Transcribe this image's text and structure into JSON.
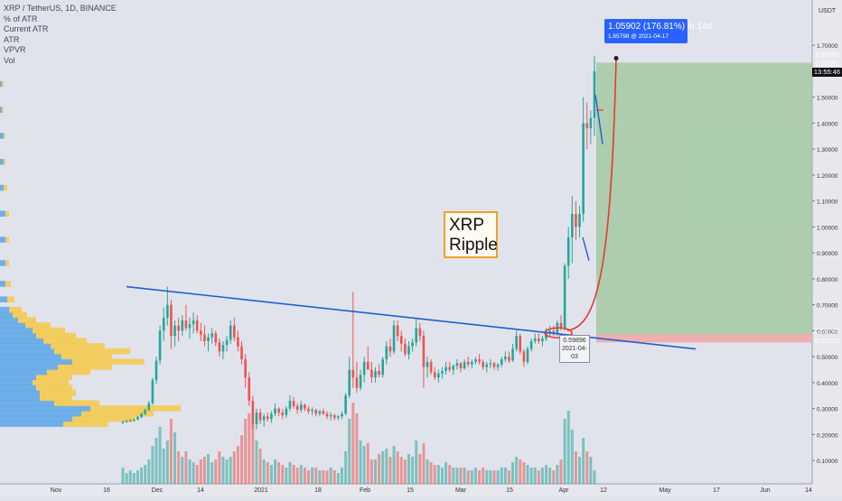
{
  "indicators": [
    "XRP / TetherUS, 1D, BINANCE",
    "% of ATR",
    "Current ATR",
    "ATR",
    "VPVR",
    "Vol"
  ],
  "annotation": {
    "line1": "XRP",
    "line2": "Ripple"
  },
  "measure": {
    "line1": "1.05902 (176.81%) in 14d",
    "line2": "1.65798 @ 2021-04-17"
  },
  "point_label": {
    "price": "0.59896",
    "date": "2021-04-03"
  },
  "price_tags": [
    {
      "text": "1.63265",
      "color": "#4a9a5c"
    },
    {
      "text": "1.60291",
      "color": "#111111"
    },
    {
      "text": "0.58745",
      "color": "#111111"
    },
    {
      "text": "0.55522",
      "color": "#ef5350"
    }
  ],
  "time_tag": "13:55:46",
  "colors": {
    "up": "#26a69a",
    "down": "#ef5350",
    "trend": "#1f5ed6",
    "target": "#a3c9a3",
    "stop": "#f0a8a8",
    "curve": "#e53935",
    "vpvr_blue": "#5aa6e8",
    "vpvr_yellow": "#f5c94a"
  },
  "chart_data": {
    "type": "candlestick",
    "title": "XRP / TetherUS, 1D, BINANCE",
    "y_axis": {
      "currency": "USDT",
      "ylim": [
        0.01,
        1.79
      ],
      "ticks": [
        1.7,
        1.6,
        1.5,
        1.4,
        1.3,
        1.2,
        1.1,
        1.0,
        0.9,
        0.8,
        0.7,
        0.6,
        0.5,
        0.4,
        0.3,
        0.2,
        0.1
      ],
      "tick_labels": [
        "1.70000",
        "1.60000",
        "1.50000",
        "1.40000",
        "1.30000",
        "1.20000",
        "1.10000",
        "1.00000",
        "0.90000",
        "0.80000",
        "0.70000",
        "0.60000",
        "0.50000",
        "0.40000",
        "0.30000",
        "0.20000",
        "0.10000"
      ]
    },
    "x_axis": {
      "ticks": [
        "Nov",
        "16",
        "Dec",
        "14",
        "2021",
        "18",
        "Feb",
        "15",
        "Mar",
        "15",
        "Apr",
        "12",
        "May",
        "17",
        "Jun",
        "14"
      ]
    },
    "price_ohlc": [
      [
        0.245,
        0.255,
        0.24,
        0.25
      ],
      [
        0.25,
        0.258,
        0.245,
        0.252
      ],
      [
        0.252,
        0.26,
        0.248,
        0.255
      ],
      [
        0.255,
        0.262,
        0.25,
        0.258
      ],
      [
        0.258,
        0.272,
        0.255,
        0.268
      ],
      [
        0.268,
        0.285,
        0.262,
        0.28
      ],
      [
        0.28,
        0.3,
        0.275,
        0.295
      ],
      [
        0.295,
        0.33,
        0.29,
        0.32
      ],
      [
        0.32,
        0.42,
        0.315,
        0.41
      ],
      [
        0.41,
        0.5,
        0.395,
        0.485
      ],
      [
        0.485,
        0.62,
        0.47,
        0.6
      ],
      [
        0.6,
        0.69,
        0.56,
        0.65
      ],
      [
        0.65,
        0.77,
        0.62,
        0.7
      ],
      [
        0.7,
        0.72,
        0.53,
        0.58
      ],
      [
        0.58,
        0.64,
        0.54,
        0.62
      ],
      [
        0.62,
        0.65,
        0.56,
        0.6
      ],
      [
        0.6,
        0.66,
        0.58,
        0.64
      ],
      [
        0.64,
        0.7,
        0.6,
        0.61
      ],
      [
        0.61,
        0.65,
        0.57,
        0.625
      ],
      [
        0.625,
        0.67,
        0.59,
        0.64
      ],
      [
        0.64,
        0.66,
        0.59,
        0.6
      ],
      [
        0.6,
        0.63,
        0.56,
        0.585
      ],
      [
        0.585,
        0.62,
        0.54,
        0.56
      ],
      [
        0.56,
        0.59,
        0.52,
        0.575
      ],
      [
        0.575,
        0.61,
        0.55,
        0.59
      ],
      [
        0.59,
        0.6,
        0.54,
        0.555
      ],
      [
        0.555,
        0.57,
        0.5,
        0.52
      ],
      [
        0.52,
        0.56,
        0.49,
        0.545
      ],
      [
        0.545,
        0.58,
        0.52,
        0.565
      ],
      [
        0.565,
        0.64,
        0.55,
        0.62
      ],
      [
        0.62,
        0.65,
        0.56,
        0.575
      ],
      [
        0.575,
        0.6,
        0.52,
        0.54
      ],
      [
        0.54,
        0.56,
        0.47,
        0.49
      ],
      [
        0.49,
        0.51,
        0.38,
        0.42
      ],
      [
        0.42,
        0.44,
        0.31,
        0.33
      ],
      [
        0.33,
        0.35,
        0.22,
        0.24
      ],
      [
        0.24,
        0.3,
        0.22,
        0.285
      ],
      [
        0.285,
        0.3,
        0.24,
        0.255
      ],
      [
        0.255,
        0.28,
        0.23,
        0.27
      ],
      [
        0.27,
        0.285,
        0.25,
        0.26
      ],
      [
        0.26,
        0.29,
        0.245,
        0.28
      ],
      [
        0.28,
        0.32,
        0.27,
        0.3
      ],
      [
        0.3,
        0.305,
        0.27,
        0.285
      ],
      [
        0.285,
        0.3,
        0.26,
        0.275
      ],
      [
        0.275,
        0.31,
        0.265,
        0.3
      ],
      [
        0.3,
        0.35,
        0.29,
        0.33
      ],
      [
        0.33,
        0.345,
        0.3,
        0.31
      ],
      [
        0.31,
        0.32,
        0.28,
        0.295
      ],
      [
        0.295,
        0.33,
        0.285,
        0.315
      ],
      [
        0.315,
        0.32,
        0.29,
        0.3
      ],
      [
        0.3,
        0.31,
        0.28,
        0.29
      ],
      [
        0.29,
        0.305,
        0.275,
        0.295
      ],
      [
        0.295,
        0.3,
        0.27,
        0.28
      ],
      [
        0.28,
        0.295,
        0.27,
        0.29
      ],
      [
        0.29,
        0.3,
        0.275,
        0.28
      ],
      [
        0.28,
        0.29,
        0.26,
        0.27
      ],
      [
        0.27,
        0.285,
        0.255,
        0.275
      ],
      [
        0.275,
        0.28,
        0.255,
        0.265
      ],
      [
        0.265,
        0.275,
        0.255,
        0.27
      ],
      [
        0.27,
        0.29,
        0.26,
        0.28
      ],
      [
        0.28,
        0.36,
        0.275,
        0.35
      ],
      [
        0.35,
        0.5,
        0.34,
        0.45
      ],
      [
        0.45,
        0.75,
        0.38,
        0.42
      ],
      [
        0.42,
        0.48,
        0.36,
        0.38
      ],
      [
        0.38,
        0.45,
        0.37,
        0.43
      ],
      [
        0.43,
        0.5,
        0.4,
        0.48
      ],
      [
        0.48,
        0.54,
        0.45,
        0.45
      ],
      [
        0.45,
        0.48,
        0.4,
        0.42
      ],
      [
        0.42,
        0.46,
        0.4,
        0.445
      ],
      [
        0.445,
        0.47,
        0.42,
        0.43
      ],
      [
        0.43,
        0.5,
        0.42,
        0.49
      ],
      [
        0.49,
        0.56,
        0.47,
        0.54
      ],
      [
        0.54,
        0.57,
        0.5,
        0.52
      ],
      [
        0.52,
        0.64,
        0.51,
        0.62
      ],
      [
        0.62,
        0.64,
        0.56,
        0.58
      ],
      [
        0.58,
        0.6,
        0.52,
        0.55
      ],
      [
        0.55,
        0.57,
        0.5,
        0.51
      ],
      [
        0.51,
        0.56,
        0.49,
        0.54
      ],
      [
        0.54,
        0.57,
        0.52,
        0.555
      ],
      [
        0.555,
        0.65,
        0.54,
        0.61
      ],
      [
        0.61,
        0.63,
        0.56,
        0.58
      ],
      [
        0.58,
        0.6,
        0.38,
        0.46
      ],
      [
        0.46,
        0.5,
        0.42,
        0.48
      ],
      [
        0.48,
        0.49,
        0.43,
        0.44
      ],
      [
        0.44,
        0.46,
        0.41,
        0.42
      ],
      [
        0.42,
        0.45,
        0.4,
        0.435
      ],
      [
        0.435,
        0.46,
        0.415,
        0.445
      ],
      [
        0.445,
        0.48,
        0.43,
        0.46
      ],
      [
        0.46,
        0.48,
        0.44,
        0.45
      ],
      [
        0.45,
        0.47,
        0.43,
        0.465
      ],
      [
        0.465,
        0.49,
        0.45,
        0.475
      ],
      [
        0.475,
        0.48,
        0.44,
        0.455
      ],
      [
        0.455,
        0.49,
        0.45,
        0.48
      ],
      [
        0.48,
        0.5,
        0.46,
        0.47
      ],
      [
        0.47,
        0.49,
        0.455,
        0.48
      ],
      [
        0.48,
        0.5,
        0.47,
        0.49
      ],
      [
        0.49,
        0.51,
        0.47,
        0.48
      ],
      [
        0.48,
        0.49,
        0.45,
        0.46
      ],
      [
        0.46,
        0.48,
        0.44,
        0.47
      ],
      [
        0.47,
        0.49,
        0.455,
        0.475
      ],
      [
        0.475,
        0.48,
        0.45,
        0.46
      ],
      [
        0.46,
        0.475,
        0.445,
        0.47
      ],
      [
        0.47,
        0.5,
        0.46,
        0.49
      ],
      [
        0.49,
        0.52,
        0.48,
        0.5
      ],
      [
        0.5,
        0.52,
        0.475,
        0.485
      ],
      [
        0.485,
        0.55,
        0.48,
        0.53
      ],
      [
        0.53,
        0.6,
        0.52,
        0.58
      ],
      [
        0.58,
        0.59,
        0.51,
        0.52
      ],
      [
        0.52,
        0.53,
        0.46,
        0.48
      ],
      [
        0.48,
        0.54,
        0.47,
        0.53
      ],
      [
        0.53,
        0.57,
        0.52,
        0.56
      ],
      [
        0.56,
        0.59,
        0.55,
        0.57
      ],
      [
        0.57,
        0.59,
        0.55,
        0.56
      ],
      [
        0.56,
        0.58,
        0.54,
        0.57
      ],
      [
        0.57,
        0.61,
        0.56,
        0.59
      ],
      [
        0.59,
        0.62,
        0.58,
        0.6
      ],
      [
        0.6,
        0.62,
        0.58,
        0.59
      ],
      [
        0.59,
        0.64,
        0.58,
        0.63
      ],
      [
        0.63,
        0.66,
        0.6,
        0.61
      ],
      [
        0.61,
        0.86,
        0.6,
        0.85
      ],
      [
        0.85,
        1.0,
        0.8,
        0.96
      ],
      [
        0.96,
        1.12,
        0.86,
        1.05
      ],
      [
        1.05,
        1.1,
        0.95,
        1.0
      ],
      [
        1.0,
        1.08,
        0.96,
        1.05
      ],
      [
        1.05,
        1.5,
        1.02,
        1.4
      ],
      [
        1.4,
        1.48,
        1.3,
        1.38
      ],
      [
        1.38,
        1.45,
        1.32,
        1.42
      ],
      [
        1.42,
        1.66,
        1.35,
        1.6
      ]
    ],
    "volume": [
      0.06,
      0.04,
      0.05,
      0.04,
      0.05,
      0.06,
      0.07,
      0.09,
      0.14,
      0.17,
      0.21,
      0.13,
      0.16,
      0.24,
      0.19,
      0.12,
      0.1,
      0.12,
      0.09,
      0.08,
      0.07,
      0.09,
      0.1,
      0.11,
      0.08,
      0.09,
      0.12,
      0.1,
      0.09,
      0.1,
      0.12,
      0.14,
      0.18,
      0.24,
      0.26,
      0.22,
      0.16,
      0.13,
      0.09,
      0.08,
      0.07,
      0.09,
      0.08,
      0.07,
      0.06,
      0.08,
      0.07,
      0.06,
      0.07,
      0.06,
      0.05,
      0.06,
      0.06,
      0.05,
      0.05,
      0.05,
      0.06,
      0.05,
      0.04,
      0.06,
      0.12,
      0.24,
      0.3,
      0.26,
      0.16,
      0.14,
      0.15,
      0.09,
      0.09,
      0.11,
      0.12,
      0.13,
      0.1,
      0.14,
      0.12,
      0.1,
      0.09,
      0.11,
      0.1,
      0.16,
      0.11,
      0.15,
      0.09,
      0.08,
      0.07,
      0.07,
      0.06,
      0.08,
      0.07,
      0.06,
      0.06,
      0.06,
      0.06,
      0.05,
      0.05,
      0.06,
      0.05,
      0.06,
      0.05,
      0.05,
      0.05,
      0.05,
      0.06,
      0.06,
      0.05,
      0.08,
      0.1,
      0.09,
      0.08,
      0.07,
      0.06,
      0.06,
      0.05,
      0.06,
      0.07,
      0.06,
      0.05,
      0.07,
      0.09,
      0.24,
      0.27,
      0.2,
      0.12,
      0.1,
      0.17,
      0.12,
      0.1,
      0.05
    ],
    "trendline": {
      "from": [
        12,
        0.77
      ],
      "to": [
        150,
        0.53
      ]
    },
    "target_zone": [
      0.5875,
      1.6327
    ],
    "stop_zone": [
      0.5552,
      0.5875
    ],
    "vpvr": [
      {
        "price": 0.24,
        "total": 0.6,
        "up": 0.35
      },
      {
        "price": 0.26,
        "total": 0.75,
        "up": 0.4
      },
      {
        "price": 0.28,
        "total": 0.85,
        "up": 0.45
      },
      {
        "price": 0.3,
        "total": 1.0,
        "up": 0.5
      },
      {
        "price": 0.32,
        "total": 0.55,
        "up": 0.3
      },
      {
        "price": 0.34,
        "total": 0.4,
        "up": 0.22
      },
      {
        "price": 0.36,
        "total": 0.42,
        "up": 0.22
      },
      {
        "price": 0.38,
        "total": 0.4,
        "up": 0.2
      },
      {
        "price": 0.4,
        "total": 0.38,
        "up": 0.18
      },
      {
        "price": 0.42,
        "total": 0.4,
        "up": 0.2
      },
      {
        "price": 0.44,
        "total": 0.5,
        "up": 0.26
      },
      {
        "price": 0.46,
        "total": 0.62,
        "up": 0.32
      },
      {
        "price": 0.48,
        "total": 0.8,
        "up": 0.4
      },
      {
        "price": 0.5,
        "total": 0.62,
        "up": 0.34
      },
      {
        "price": 0.52,
        "total": 0.72,
        "up": 0.3
      },
      {
        "price": 0.54,
        "total": 0.58,
        "up": 0.28
      },
      {
        "price": 0.56,
        "total": 0.48,
        "up": 0.24
      },
      {
        "price": 0.58,
        "total": 0.42,
        "up": 0.2
      },
      {
        "price": 0.6,
        "total": 0.36,
        "up": 0.18
      },
      {
        "price": 0.62,
        "total": 0.28,
        "up": 0.14
      },
      {
        "price": 0.64,
        "total": 0.2,
        "up": 0.1
      },
      {
        "price": 0.66,
        "total": 0.15,
        "up": 0.07
      },
      {
        "price": 0.68,
        "total": 0.12,
        "up": 0.05
      },
      {
        "price": 0.72,
        "total": 0.08,
        "up": 0.04
      },
      {
        "price": 0.78,
        "total": 0.06,
        "up": 0.03
      },
      {
        "price": 0.86,
        "total": 0.05,
        "up": 0.03
      },
      {
        "price": 0.95,
        "total": 0.05,
        "up": 0.03
      },
      {
        "price": 1.05,
        "total": 0.05,
        "up": 0.03
      },
      {
        "price": 1.15,
        "total": 0.04,
        "up": 0.02
      },
      {
        "price": 1.25,
        "total": 0.03,
        "up": 0.02
      },
      {
        "price": 1.35,
        "total": 0.03,
        "up": 0.02
      },
      {
        "price": 1.45,
        "total": 0.02,
        "up": 0.01
      },
      {
        "price": 1.55,
        "total": 0.02,
        "up": 0.01
      }
    ]
  }
}
